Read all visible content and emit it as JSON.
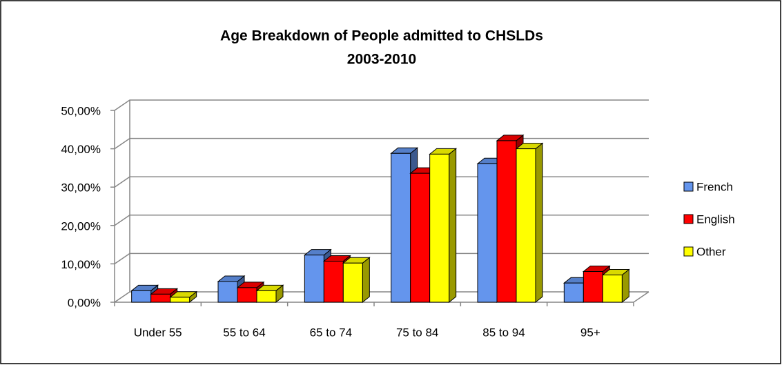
{
  "chart_data": {
    "type": "bar3d",
    "title": "Age Breakdown of People admitted to CHSLDs",
    "subtitle": "2003-2010",
    "categories": [
      "Under 55",
      "55 to 64",
      "65 to 74",
      "75 to 84",
      "85 to 94",
      "95+"
    ],
    "series": [
      {
        "name": "French",
        "color": "#6495ed",
        "values": [
          3.0,
          5.4,
          12.3,
          38.8,
          36.1,
          5.0
        ]
      },
      {
        "name": "English",
        "color": "#ff0000",
        "values": [
          2.1,
          3.8,
          10.7,
          33.6,
          42.1,
          8.0
        ]
      },
      {
        "name": "Other",
        "color": "#ffff00",
        "values": [
          1.3,
          3.0,
          10.2,
          38.6,
          40.0,
          7.1
        ]
      }
    ],
    "ylim": [
      0,
      50
    ],
    "yticks": [
      {
        "value": 0,
        "label": "0,00%"
      },
      {
        "value": 10,
        "label": "10,00%"
      },
      {
        "value": 20,
        "label": "20,00%"
      },
      {
        "value": 30,
        "label": "30,00%"
      },
      {
        "value": 40,
        "label": "40,00%"
      },
      {
        "value": 50,
        "label": "50,00%"
      }
    ],
    "grid": true,
    "legend": "right"
  }
}
